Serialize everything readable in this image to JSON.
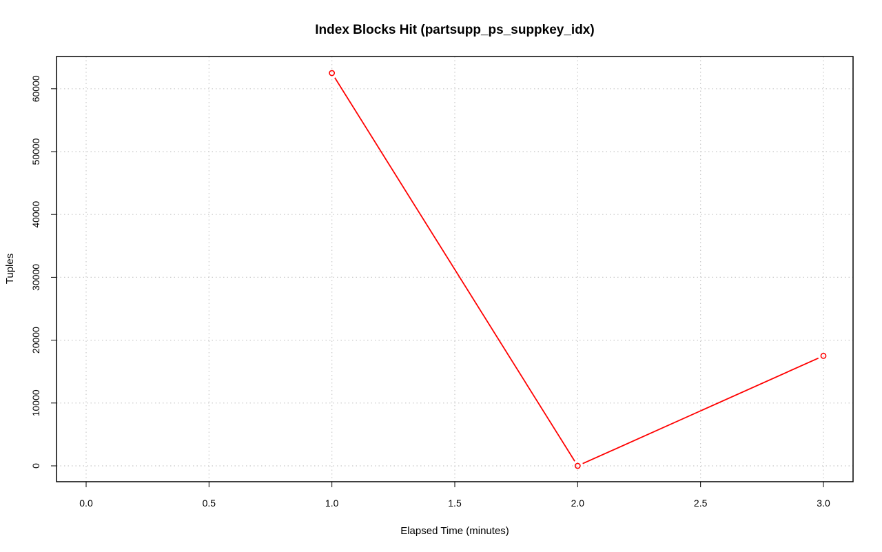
{
  "chart_data": {
    "type": "line",
    "title": "Index Blocks Hit (partsupp_ps_suppkey_idx)",
    "xlabel": "Elapsed Time (minutes)",
    "ylabel": "Tuples",
    "xlim": [
      0,
      3
    ],
    "ylim": [
      0,
      62500
    ],
    "x_ticks": [
      0.0,
      0.5,
      1.0,
      1.5,
      2.0,
      2.5,
      3.0
    ],
    "x_tick_labels": [
      "0.0",
      "0.5",
      "1.0",
      "1.5",
      "2.0",
      "2.5",
      "3.0"
    ],
    "y_ticks": [
      0,
      10000,
      20000,
      30000,
      40000,
      50000,
      60000
    ],
    "y_tick_labels": [
      "0",
      "10000",
      "20000",
      "30000",
      "40000",
      "50000",
      "60000"
    ],
    "grid": true,
    "line_color": "#ff0000",
    "series": [
      {
        "x": [
          1,
          2,
          3
        ],
        "y": [
          62500,
          0,
          17500
        ]
      }
    ]
  }
}
